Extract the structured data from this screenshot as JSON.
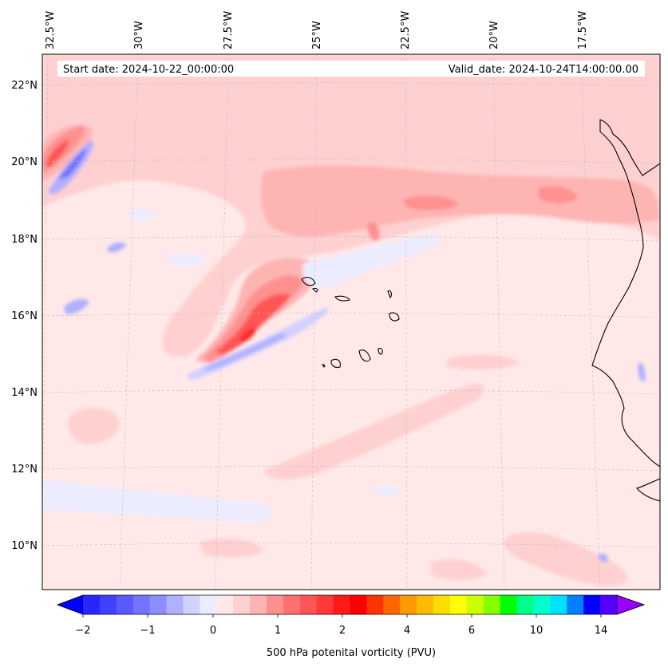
{
  "map": {
    "start_label": "Start date: 2024-10-22_00:00:00",
    "valid_label": "Valid_date: 2024-10-24T14:00:00.00",
    "lon_labels": [
      "32.5°W",
      "30°W",
      "27.5°W",
      "25°W",
      "22.5°W",
      "20°W",
      "17.5°W"
    ],
    "lat_labels": [
      "22°N",
      "20°N",
      "18°N",
      "16°N",
      "14°N",
      "12°N",
      "10°N"
    ],
    "extent": {
      "lon_min": -32.7,
      "lon_max": -15.2,
      "lat_min": 8.9,
      "lat_max": 22.8
    },
    "gridlines": true,
    "background_color": "#ffe8e8"
  },
  "colorbar": {
    "label": "500 hPa potenital vorticity (PVU)",
    "tick_labels": [
      "−2",
      "−1",
      "0",
      "1",
      "2",
      "4",
      "6",
      "10",
      "14"
    ],
    "levels": [
      -2.0,
      -1.75,
      -1.5,
      -1.25,
      -1.0,
      -0.75,
      -0.5,
      -0.25,
      0.0,
      0.25,
      0.5,
      0.75,
      1.0,
      1.25,
      1.5,
      1.75,
      2.0,
      2.5,
      3.0,
      3.5,
      4.0,
      4.5,
      5.0,
      5.5,
      6.0,
      7.0,
      8.0,
      9.0,
      10.0,
      11.0,
      12.0,
      13.0,
      14.0
    ],
    "colors": [
      "#0000ff",
      "#2626ff",
      "#4040ff",
      "#5a5aff",
      "#7373ff",
      "#8d8dff",
      "#b0b0ff",
      "#d2d2ff",
      "#ececff",
      "#ffe8e8",
      "#ffd0d0",
      "#ffb4b4",
      "#ff9090",
      "#ff7070",
      "#ff5555",
      "#ff3838",
      "#ff1a1a",
      "#ff0000",
      "#ff3300",
      "#ff6600",
      "#ff9900",
      "#ffbb00",
      "#ffdd00",
      "#ffff00",
      "#ccff00",
      "#88ff00",
      "#00ff00",
      "#00ff88",
      "#00ffcc",
      "#00e0ff",
      "#0080ff",
      "#0000ff",
      "#5500ff",
      "#9900ff"
    ],
    "extend": "both"
  }
}
